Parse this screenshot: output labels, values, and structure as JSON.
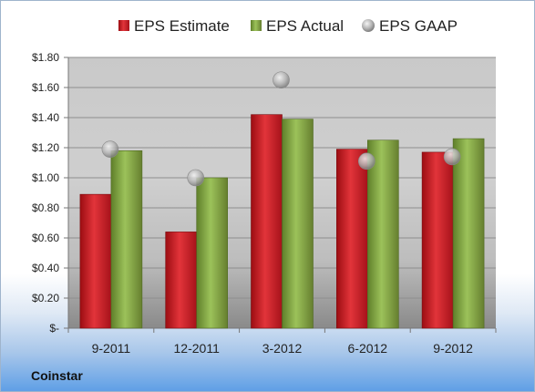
{
  "chart_data": {
    "type": "bar",
    "categories": [
      "9-2011",
      "12-2011",
      "3-2012",
      "6-2012",
      "9-2012"
    ],
    "series": [
      {
        "name": "EPS Estimate",
        "kind": "bar",
        "color": "#d42027",
        "values": [
          0.89,
          0.64,
          1.42,
          1.19,
          1.17
        ]
      },
      {
        "name": "EPS Actual",
        "kind": "bar",
        "color": "#8db04a",
        "values": [
          1.18,
          1.0,
          1.39,
          1.25,
          1.26
        ]
      },
      {
        "name": "EPS GAAP",
        "kind": "marker",
        "color": "#a7a7a7",
        "values": [
          1.19,
          1.0,
          1.65,
          1.11,
          1.14
        ]
      }
    ],
    "ylim": [
      0,
      1.8
    ],
    "yticks": [
      0,
      0.2,
      0.4,
      0.6,
      0.8,
      1.0,
      1.2,
      1.4,
      1.6,
      1.8
    ],
    "ytick_labels": [
      "$-",
      "$0.20",
      "$0.40",
      "$0.60",
      "$0.80",
      "$1.00",
      "$1.20",
      "$1.40",
      "$1.60",
      "$1.80"
    ],
    "grid": true,
    "legend_position": "top"
  },
  "footer": {
    "company": "Coinstar"
  }
}
